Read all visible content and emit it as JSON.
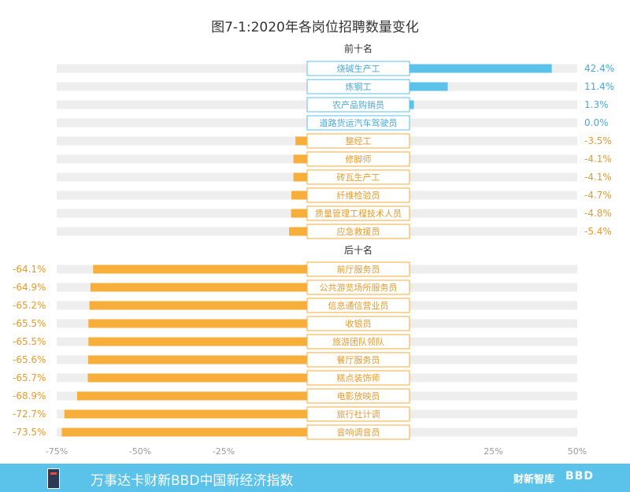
{
  "chart_data": {
    "type": "bar",
    "orientation": "horizontal",
    "title": "图7-1:2020年各岗位招聘数量变化",
    "x_ticks": [
      "-75%",
      "-50%",
      "-25%",
      "25%",
      "50%"
    ],
    "xlim": [
      -75,
      50
    ],
    "grid": true,
    "groups": [
      {
        "label": "前十名",
        "value_label_side": "right",
        "categories": [
          "烧碱生产工",
          "炼钢工",
          "农产品购销员",
          "道路货运汽车驾驶员",
          "整经工",
          "修脚师",
          "砖瓦生产工",
          "纤维检验员",
          "质量管理工程技术人员",
          "应急救援员"
        ],
        "values": [
          42.4,
          11.4,
          1.3,
          0.0,
          -3.5,
          -4.1,
          -4.1,
          -4.7,
          -4.8,
          -5.4
        ],
        "value_labels": [
          "42.4%",
          "11.4%",
          "1.3%",
          "0.0%",
          "-3.5%",
          "-4.1%",
          "-4.1%",
          "-4.7%",
          "-4.8%",
          "-5.4%"
        ]
      },
      {
        "label": "后十名",
        "value_label_side": "left",
        "categories": [
          "前厅服务员",
          "公共游览场所服务员",
          "信息通信营业员",
          "收银员",
          "旅游团队领队",
          "餐厅服务员",
          "糕点装饰师",
          "电影放映员",
          "旅行社计调",
          "音响调音员"
        ],
        "values": [
          -64.1,
          -64.9,
          -65.2,
          -65.5,
          -65.5,
          -65.6,
          -65.7,
          -68.9,
          -72.7,
          -73.5
        ],
        "value_labels": [
          "-64.1%",
          "-64.9%",
          "-65.2%",
          "-65.5%",
          "-65.5%",
          "-65.6%",
          "-65.7%",
          "-68.9%",
          "-72.7%",
          "-73.5%"
        ]
      }
    ],
    "colors": {
      "positive": "#5bc2ea",
      "negative": "#f7ae3a",
      "track": "#eeeeee",
      "label_text_positive": "#4aa8d8",
      "label_text_negative": "#e89a2a",
      "axis_text": "#999999",
      "title_text": "#333333"
    }
  },
  "footer": {
    "title": "万事达卡财新BBD中国新经济指数",
    "brand_1": "财新智库",
    "brand_2": "BBD"
  }
}
